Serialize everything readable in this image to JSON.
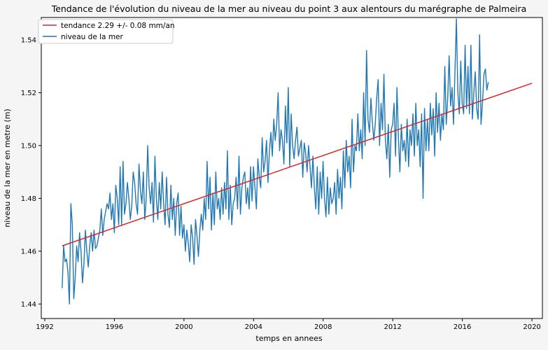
{
  "chart_data": {
    "type": "line",
    "title": "Tendance de l'évolution du niveau de la mer au niveau du point 3 aux alentours du marégraphe de Palmeira",
    "xlabel": "temps en annees",
    "ylabel": "niveau de la mer en metre (m)",
    "xlim": [
      1991.8,
      2020.6
    ],
    "ylim": [
      1.4345,
      1.5485
    ],
    "xticks": [
      1992,
      1996,
      2000,
      2004,
      2008,
      2012,
      2016,
      2020
    ],
    "xtick_labels": [
      "1992",
      "1996",
      "2000",
      "2004",
      "2008",
      "2012",
      "2016",
      "2020"
    ],
    "yticks": [
      1.44,
      1.46,
      1.48,
      1.5,
      1.52,
      1.54
    ],
    "ytick_labels": [
      "1.44",
      "1.46",
      "1.48",
      "1.50",
      "1.52",
      "1.54"
    ],
    "grid": false,
    "legend_position": "top-left",
    "series": [
      {
        "name": "tendance 2.29 +/- 0.08 mm/an",
        "color": "#d62728",
        "x": [
          1993.0,
          2020.0
        ],
        "values": [
          1.462,
          1.5236
        ]
      },
      {
        "name": "niveau de la mer",
        "color": "#1f77b4",
        "x_start": 1993.0,
        "x_step": 0.0833,
        "values": [
          1.446,
          1.462,
          1.456,
          1.457,
          1.452,
          1.44,
          1.478,
          1.47,
          1.442,
          1.45,
          1.462,
          1.456,
          1.467,
          1.46,
          1.448,
          1.455,
          1.468,
          1.46,
          1.454,
          1.462,
          1.467,
          1.46,
          1.468,
          1.461,
          1.462,
          1.465,
          1.468,
          1.476,
          1.466,
          1.472,
          1.475,
          1.478,
          1.476,
          1.482,
          1.472,
          1.478,
          1.467,
          1.485,
          1.48,
          1.47,
          1.492,
          1.47,
          1.494,
          1.474,
          1.478,
          1.486,
          1.48,
          1.472,
          1.477,
          1.49,
          1.486,
          1.478,
          1.474,
          1.493,
          1.483,
          1.478,
          1.49,
          1.472,
          1.48,
          1.5,
          1.484,
          1.478,
          1.486,
          1.471,
          1.496,
          1.48,
          1.472,
          1.486,
          1.476,
          1.49,
          1.478,
          1.47,
          1.488,
          1.474,
          1.469,
          1.485,
          1.472,
          1.48,
          1.466,
          1.478,
          1.482,
          1.466,
          1.477,
          1.465,
          1.47,
          1.46,
          1.468,
          1.463,
          1.456,
          1.47,
          1.465,
          1.455,
          1.472,
          1.466,
          1.458,
          1.468,
          1.474,
          1.468,
          1.48,
          1.472,
          1.494,
          1.476,
          1.488,
          1.468,
          1.482,
          1.47,
          1.49,
          1.476,
          1.48,
          1.472,
          1.484,
          1.474,
          1.486,
          1.476,
          1.498,
          1.472,
          1.485,
          1.47,
          1.478,
          1.48,
          1.488,
          1.476,
          1.496,
          1.474,
          1.484,
          1.488,
          1.49,
          1.478,
          1.484,
          1.476,
          1.492,
          1.479,
          1.492,
          1.484,
          1.476,
          1.495,
          1.488,
          1.484,
          1.503,
          1.49,
          1.494,
          1.502,
          1.486,
          1.498,
          1.505,
          1.496,
          1.51,
          1.502,
          1.508,
          1.52,
          1.498,
          1.506,
          1.502,
          1.493,
          1.515,
          1.501,
          1.522,
          1.492,
          1.512,
          1.5,
          1.495,
          1.502,
          1.507,
          1.496,
          1.499,
          1.502,
          1.488,
          1.501,
          1.497,
          1.49,
          1.5,
          1.492,
          1.484,
          1.496,
          1.484,
          1.476,
          1.492,
          1.474,
          1.49,
          1.48,
          1.494,
          1.48,
          1.473,
          1.488,
          1.474,
          1.484,
          1.478,
          1.48,
          1.486,
          1.474,
          1.491,
          1.48,
          1.488,
          1.476,
          1.498,
          1.484,
          1.502,
          1.49,
          1.496,
          1.484,
          1.51,
          1.49,
          1.5,
          1.498,
          1.512,
          1.498,
          1.506,
          1.495,
          1.52,
          1.5,
          1.536,
          1.51,
          1.505,
          1.518,
          1.509,
          1.502,
          1.508,
          1.518,
          1.525,
          1.5,
          1.516,
          1.506,
          1.527,
          1.502,
          1.495,
          1.508,
          1.488,
          1.506,
          1.508,
          1.516,
          1.496,
          1.522,
          1.503,
          1.49,
          1.508,
          1.498,
          1.502,
          1.494,
          1.51,
          1.492,
          1.506,
          1.5,
          1.512,
          1.496,
          1.516,
          1.5,
          1.506,
          1.492,
          1.512,
          1.48,
          1.514,
          1.498,
          1.51,
          1.498,
          1.516,
          1.504,
          1.514,
          1.496,
          1.52,
          1.505,
          1.516,
          1.502,
          1.512,
          1.506,
          1.53,
          1.508,
          1.518,
          1.534,
          1.515,
          1.522,
          1.508,
          1.528,
          1.548,
          1.52,
          1.512,
          1.532,
          1.516,
          1.512,
          1.538,
          1.514,
          1.53,
          1.512,
          1.538,
          1.51,
          1.52,
          1.528,
          1.514,
          1.51,
          1.542,
          1.508,
          1.516,
          1.527,
          1.529,
          1.521,
          1.524
        ]
      }
    ]
  }
}
